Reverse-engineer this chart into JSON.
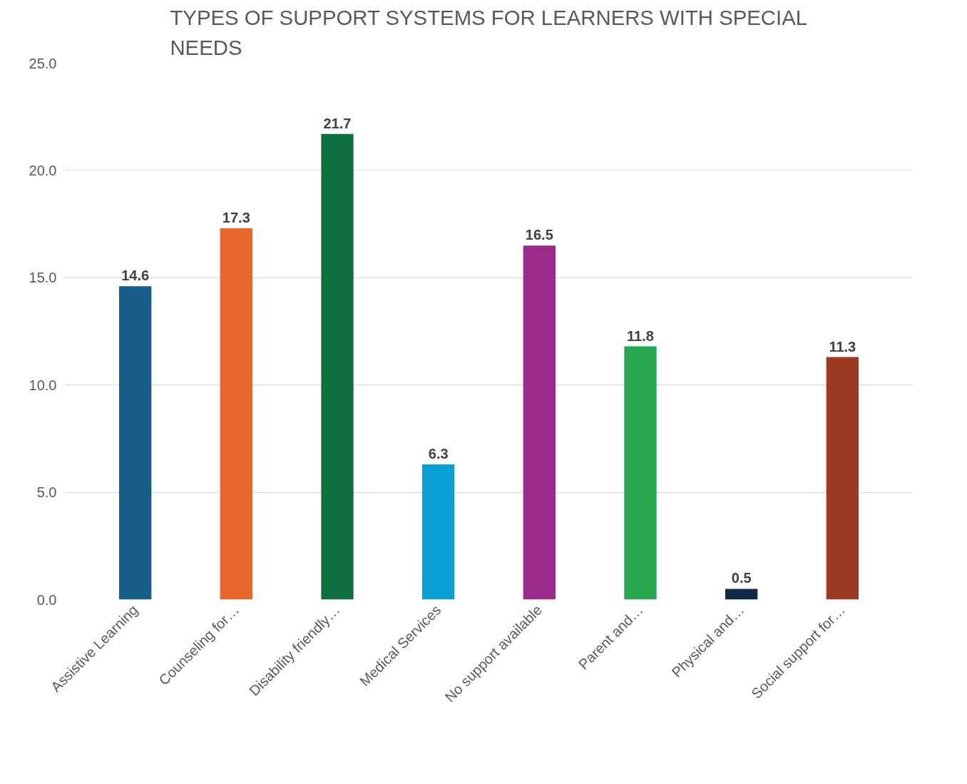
{
  "chart_data": {
    "type": "bar",
    "title": "TYPES OF SUPPORT SYSTEMS FOR LEARNERS WITH SPECIAL NEEDS",
    "categories": [
      "Assistive Learning",
      "Counseling for…",
      "Disability friendly…",
      "Medical Services",
      "No support available",
      "Parent and…",
      "Physical and…",
      "Social support for…"
    ],
    "values": [
      14.6,
      17.3,
      21.7,
      6.3,
      16.5,
      11.8,
      0.5,
      11.3
    ],
    "colors": [
      "#175e86",
      "#e9672c",
      "#0e7040",
      "#0aa0d6",
      "#9c2a8a",
      "#27a74e",
      "#0e2a44",
      "#9d3a22"
    ],
    "ylim": [
      0,
      25
    ],
    "yticks": [
      {
        "value": 0,
        "label": "0.0"
      },
      {
        "value": 5,
        "label": "5.0"
      },
      {
        "value": 10,
        "label": "10.0"
      },
      {
        "value": 15,
        "label": "15.0"
      },
      {
        "value": 20,
        "label": "20.0"
      },
      {
        "value": 25,
        "label": "25.0"
      }
    ],
    "grid": "y",
    "data_labels": true
  }
}
